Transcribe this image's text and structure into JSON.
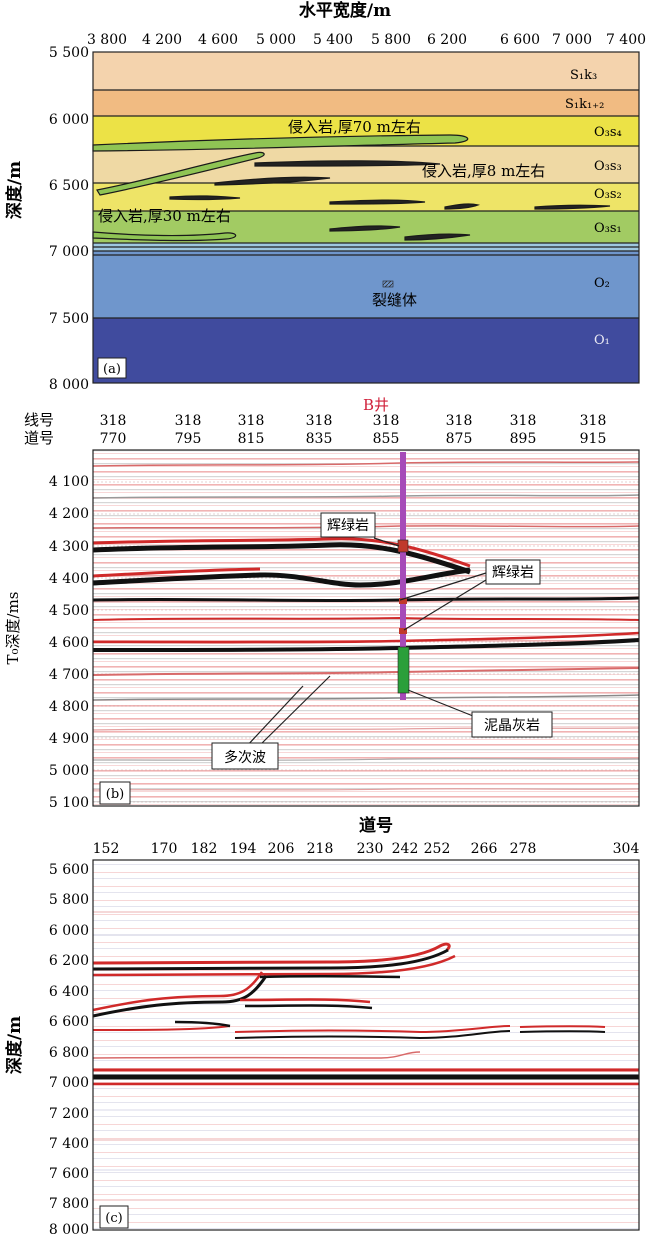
{
  "panel_a": {
    "top_axis_title": "水平宽度/m",
    "x_ticks": [
      "3 800",
      "4 200",
      "4 600",
      "5 000",
      "5 400",
      "5 800",
      "6 200",
      "6 600",
      "7 000",
      "7 400"
    ],
    "y_axis_title": "深度/m",
    "y_ticks": [
      "5 500",
      "6 000",
      "6 500",
      "7 000",
      "7 500",
      "8 000"
    ],
    "layers": [
      {
        "label": "S₁k₃",
        "color": "#f4d3ad"
      },
      {
        "label": "S₁k₁₊₂",
        "color": "#f1bb82"
      },
      {
        "label": "O₃s₄",
        "color": "#ece246"
      },
      {
        "label": "O₃s₃",
        "color": "#efd9a4"
      },
      {
        "label": "O₃s₂",
        "color": "#eee467"
      },
      {
        "label": "O₃s₁",
        "color": "#a2cb63"
      },
      {
        "label": "O₂",
        "color": "#6f96cc"
      },
      {
        "label": "O₁",
        "color": "#404b9e"
      }
    ],
    "annotations": {
      "intrusion_70": "侵入岩,厚70 m左右",
      "intrusion_8": "侵入岩,厚8 m左右",
      "intrusion_30": "侵入岩,厚30 m左右",
      "fracture": "裂缝体"
    },
    "panel_label": "(a)",
    "intrusion_color": "#8fc454"
  },
  "panel_b": {
    "well_label": "B井",
    "line_label": "线号",
    "trace_label": "道号",
    "line_numbers": [
      "318",
      "318",
      "318",
      "318",
      "318",
      "318",
      "318",
      "318"
    ],
    "trace_numbers": [
      "770",
      "795",
      "815",
      "835",
      "855",
      "875",
      "895",
      "915"
    ],
    "y_axis_title": "T₀深度/ms",
    "y_ticks": [
      "4 100",
      "4 200",
      "4 300",
      "4 400",
      "4 500",
      "4 600",
      "4 700",
      "4 800",
      "4 900",
      "5 000",
      "5 100"
    ],
    "callouts": {
      "diabase_1": "辉绿岩",
      "diabase_2": "辉绿岩",
      "micrite": "泥晶灰岩",
      "multiple": "多次波"
    },
    "panel_label": "(b)"
  },
  "panel_c": {
    "top_axis_title": "道号",
    "x_ticks": [
      "152",
      "170",
      "182",
      "194",
      "206",
      "218",
      "230",
      "242",
      "252",
      "266",
      "278",
      "304"
    ],
    "y_axis_title": "深度/m",
    "y_ticks": [
      "5 600",
      "5 800",
      "6 000",
      "6 200",
      "6 400",
      "6 600",
      "6 800",
      "7 000",
      "7 200",
      "7 400",
      "7 600",
      "7 800",
      "8 000"
    ],
    "panel_label": "(c)"
  }
}
